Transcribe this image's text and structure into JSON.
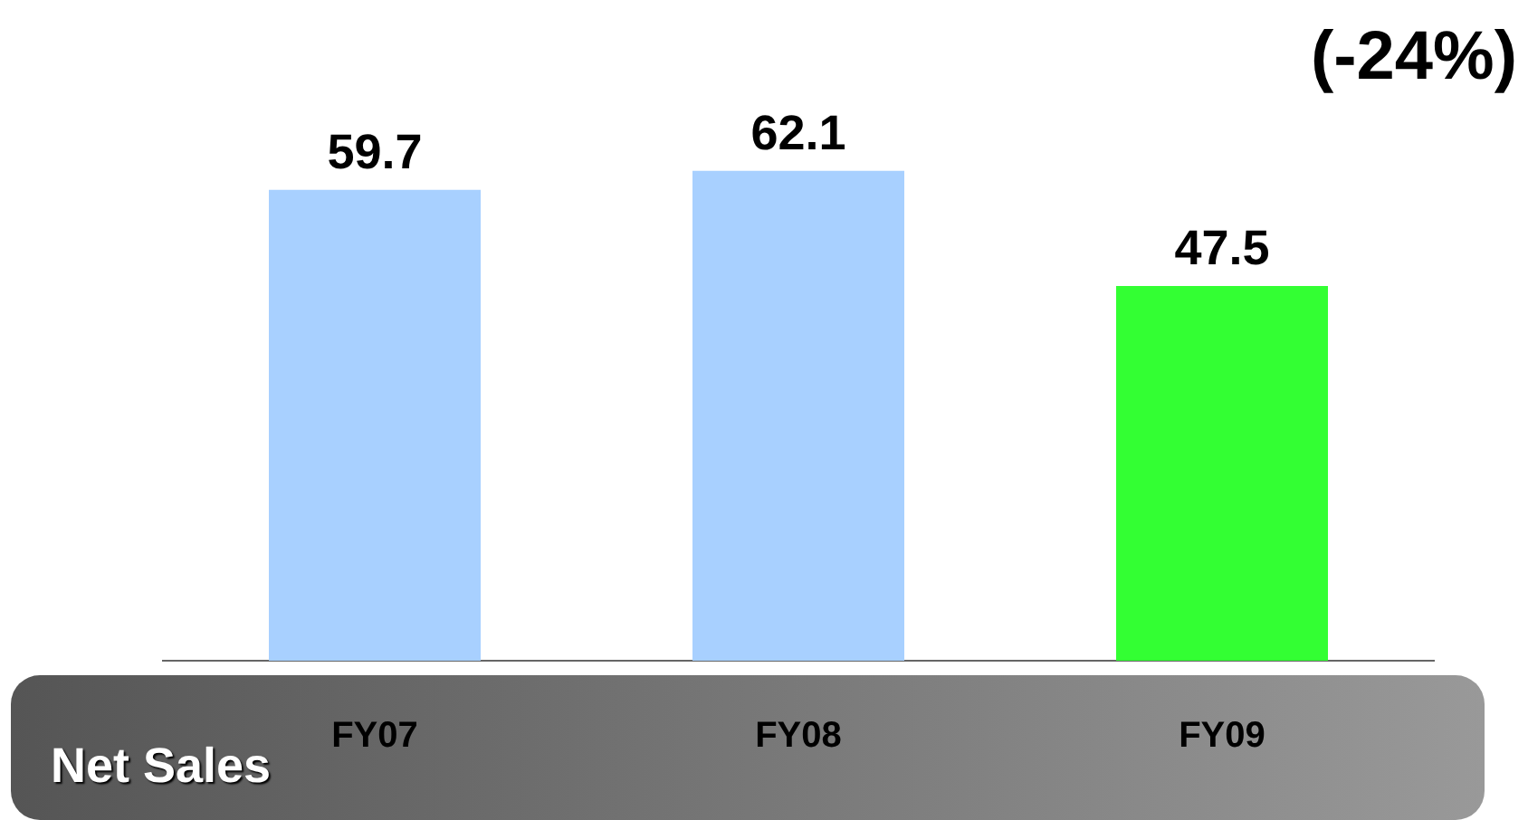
{
  "chart_data": {
    "type": "bar",
    "title": "Net Sales",
    "categories": [
      "FY07",
      "FY08",
      "FY09"
    ],
    "values": [
      59.7,
      62.1,
      47.5
    ],
    "colors": [
      "#a8d0ff",
      "#a8d0ff",
      "#33ff33"
    ],
    "data_labels": true,
    "tick_labels": "x",
    "grid": false,
    "legend": false,
    "annotations": [
      "(-24%)"
    ]
  }
}
